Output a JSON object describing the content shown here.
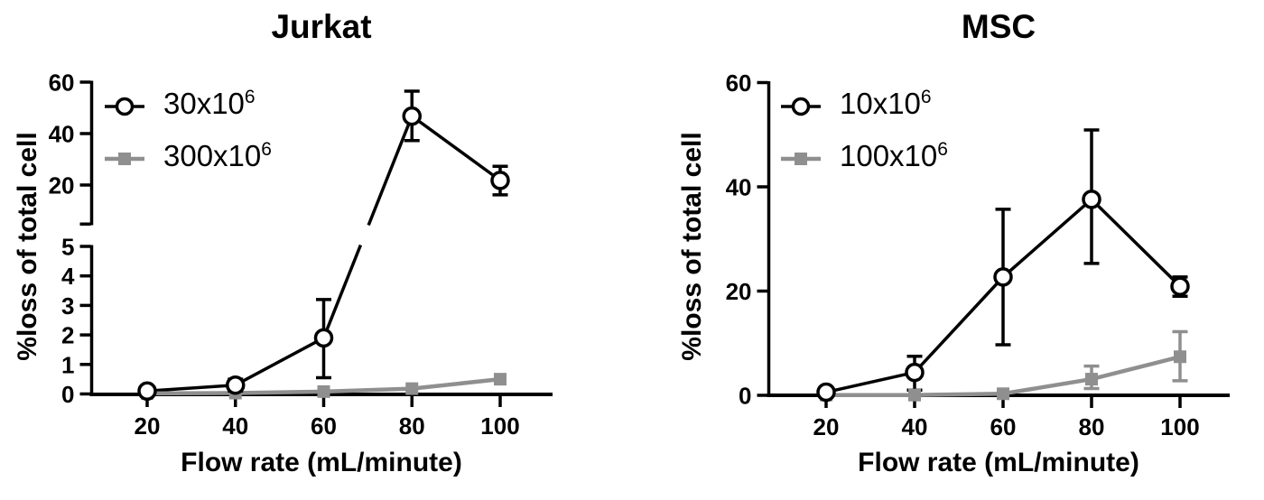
{
  "colors": {
    "black": "#000000",
    "gray": "#8f8f8f",
    "marker_fill": "#ffffff"
  },
  "chart_data": [
    {
      "id": "jurkat",
      "type": "line",
      "title": "Jurkat",
      "x_label": "Flow rate (mL/minute)",
      "y_label": "%loss of total cell",
      "x_ticks": [
        20,
        40,
        60,
        80,
        100
      ],
      "y_axis": {
        "type": "broken",
        "lower": {
          "range": [
            0,
            5
          ],
          "ticks": [
            0,
            1,
            2,
            3,
            4,
            5
          ]
        },
        "upper": {
          "range": [
            5,
            60
          ],
          "ticks": [
            20,
            40,
            60
          ]
        }
      },
      "legend": [
        {
          "label_base": "30x10",
          "label_exp": "6",
          "marker": "circle",
          "color": "black"
        },
        {
          "label_base": "300x10",
          "label_exp": "6",
          "marker": "square",
          "color": "gray"
        }
      ],
      "series": [
        {
          "name": "30x10^6",
          "marker": "circle",
          "color": "black",
          "points": [
            {
              "x": 20,
              "y": 0.1
            },
            {
              "x": 40,
              "y": 0.3,
              "err": [
                0.1,
                0.5
              ]
            },
            {
              "x": 60,
              "y": 1.9,
              "err": [
                0.55,
                3.2
              ]
            },
            {
              "x": 80,
              "y": 46.8,
              "err": [
                37.3,
                56.5
              ]
            },
            {
              "x": 100,
              "y": 21.8,
              "err": [
                16.2,
                27.3
              ]
            }
          ]
        },
        {
          "name": "300x10^6",
          "marker": "square",
          "color": "gray",
          "points": [
            {
              "x": 20,
              "y": 0.02
            },
            {
              "x": 40,
              "y": 0.03
            },
            {
              "x": 60,
              "y": 0.08
            },
            {
              "x": 80,
              "y": 0.18
            },
            {
              "x": 100,
              "y": 0.5
            }
          ]
        }
      ]
    },
    {
      "id": "msc",
      "type": "line",
      "title": "MSC",
      "x_label": "Flow rate (mL/minute)",
      "y_label": "%loss of total cell",
      "x_ticks": [
        20,
        40,
        60,
        80,
        100
      ],
      "y_axis": {
        "type": "linear",
        "range": [
          0,
          60
        ],
        "ticks": [
          0,
          20,
          40,
          60
        ]
      },
      "legend": [
        {
          "label_base": "10x10",
          "label_exp": "6",
          "marker": "circle",
          "color": "black"
        },
        {
          "label_base": "100x10",
          "label_exp": "6",
          "marker": "square",
          "color": "gray"
        }
      ],
      "series": [
        {
          "name": "10x10^6",
          "marker": "circle",
          "color": "black",
          "points": [
            {
              "x": 20,
              "y": 0.6
            },
            {
              "x": 40,
              "y": 4.4,
              "err": [
                1.0,
                7.5
              ]
            },
            {
              "x": 60,
              "y": 22.7,
              "err": [
                9.7,
                35.7
              ]
            },
            {
              "x": 80,
              "y": 37.6,
              "err": [
                25.3,
                50.9
              ]
            },
            {
              "x": 100,
              "y": 20.9,
              "err": [
                19.0,
                22.7
              ]
            }
          ]
        },
        {
          "name": "100x10^6",
          "marker": "square",
          "color": "gray",
          "points": [
            {
              "x": 20,
              "y": 0.05
            },
            {
              "x": 40,
              "y": 0.05
            },
            {
              "x": 60,
              "y": 0.3
            },
            {
              "x": 80,
              "y": 3.1,
              "err": [
                1.3,
                5.6
              ]
            },
            {
              "x": 100,
              "y": 7.4,
              "err": [
                2.8,
                12.2
              ]
            }
          ]
        }
      ]
    }
  ]
}
